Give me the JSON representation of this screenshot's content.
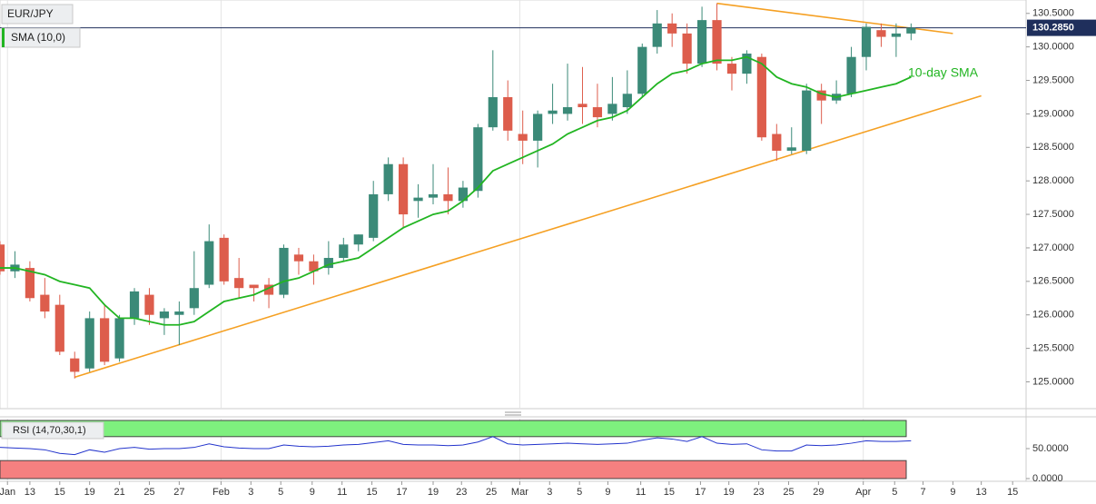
{
  "chart_data": [
    {
      "type": "candlestick",
      "title": "EUR/JPY",
      "x": [
        0,
        1,
        2,
        3,
        4,
        5,
        6,
        7,
        8,
        9,
        10,
        11,
        12,
        13,
        14,
        15,
        16,
        17,
        18,
        19,
        20,
        21,
        22,
        23,
        24,
        25,
        26,
        27,
        28,
        29,
        30,
        31,
        32,
        33,
        34,
        35,
        36,
        37,
        38,
        39,
        40,
        41,
        42,
        43,
        44,
        45,
        46,
        47,
        48,
        49,
        50,
        51,
        52,
        53,
        54,
        55,
        56,
        57,
        58,
        59,
        60,
        61
      ],
      "open": [
        127.05,
        126.65,
        126.7,
        126.3,
        126.15,
        125.35,
        125.2,
        125.95,
        125.35,
        125.95,
        126.3,
        125.95,
        126.0,
        126.1,
        126.45,
        127.15,
        126.55,
        126.45,
        126.45,
        126.3,
        126.9,
        126.8,
        126.7,
        126.85,
        127.05,
        127.15,
        127.8,
        128.25,
        127.7,
        127.75,
        127.8,
        127.7,
        127.85,
        128.8,
        129.25,
        128.7,
        128.6,
        129.0,
        129.0,
        129.15,
        129.1,
        129.0,
        129.1,
        129.3,
        130.0,
        130.35,
        130.2,
        129.75,
        130.4,
        129.75,
        129.6,
        129.85,
        128.7,
        128.45,
        128.45,
        129.35,
        129.2,
        129.3,
        129.85,
        130.25,
        130.15,
        130.2
      ],
      "high": [
        127.1,
        126.95,
        126.8,
        126.55,
        126.3,
        125.45,
        126.05,
        126.15,
        126.0,
        126.4,
        126.4,
        126.1,
        126.2,
        126.95,
        127.35,
        127.2,
        126.85,
        126.45,
        126.55,
        127.05,
        127.0,
        126.9,
        127.1,
        127.15,
        127.2,
        128.0,
        128.35,
        128.35,
        127.95,
        128.25,
        128.2,
        128.0,
        128.85,
        129.95,
        129.5,
        129.05,
        129.05,
        129.45,
        129.75,
        129.7,
        129.45,
        129.55,
        129.65,
        130.05,
        130.55,
        130.5,
        130.35,
        130.6,
        130.65,
        129.85,
        129.95,
        129.9,
        128.85,
        128.8,
        129.45,
        129.45,
        129.5,
        130.0,
        130.35,
        130.35,
        130.35,
        130.35
      ],
      "low": [
        126.6,
        126.55,
        126.2,
        125.95,
        125.4,
        125.05,
        125.15,
        125.25,
        125.3,
        125.85,
        125.85,
        125.7,
        125.55,
        126.0,
        126.4,
        126.45,
        126.25,
        126.2,
        126.1,
        126.25,
        126.6,
        126.45,
        126.6,
        126.8,
        126.95,
        127.1,
        127.7,
        127.3,
        127.45,
        127.65,
        127.5,
        127.6,
        127.75,
        128.75,
        128.6,
        128.25,
        128.2,
        128.85,
        128.9,
        128.85,
        128.8,
        128.9,
        129.0,
        129.25,
        129.9,
        130.0,
        129.6,
        129.7,
        129.65,
        129.35,
        129.45,
        128.6,
        128.3,
        128.4,
        128.4,
        128.85,
        129.15,
        129.25,
        129.65,
        130.0,
        129.85,
        130.1
      ],
      "close": [
        126.65,
        126.75,
        126.25,
        126.05,
        125.45,
        125.15,
        125.95,
        125.3,
        125.95,
        126.35,
        126.0,
        126.05,
        126.05,
        126.4,
        127.1,
        126.5,
        126.4,
        126.4,
        126.3,
        127.0,
        126.8,
        126.65,
        126.85,
        127.05,
        127.2,
        127.8,
        128.25,
        127.5,
        127.75,
        127.8,
        127.7,
        127.9,
        128.8,
        129.25,
        128.75,
        128.6,
        129.0,
        129.05,
        129.1,
        129.1,
        128.95,
        129.15,
        129.3,
        130.0,
        130.35,
        130.2,
        129.75,
        130.4,
        129.75,
        129.6,
        129.9,
        128.65,
        128.45,
        128.5,
        129.35,
        129.2,
        129.3,
        129.85,
        130.3,
        130.15,
        130.2,
        130.285
      ],
      "up_color": "#3b8a78",
      "down_color": "#dd5d4c",
      "series": [
        {
          "name": "SMA (10,0)",
          "color": "#22b522",
          "values": [
            126.7,
            126.7,
            126.65,
            126.6,
            126.5,
            126.45,
            126.4,
            126.15,
            125.95,
            125.95,
            125.9,
            125.85,
            125.85,
            125.9,
            126.05,
            126.2,
            126.25,
            126.3,
            126.4,
            126.5,
            126.55,
            126.65,
            126.75,
            126.8,
            126.85,
            127.0,
            127.15,
            127.3,
            127.4,
            127.5,
            127.55,
            127.7,
            127.9,
            128.15,
            128.25,
            128.35,
            128.45,
            128.55,
            128.7,
            128.8,
            128.9,
            128.95,
            129.05,
            129.25,
            129.45,
            129.6,
            129.65,
            129.75,
            129.8,
            129.8,
            129.85,
            129.75,
            129.55,
            129.45,
            129.4,
            129.3,
            129.25,
            129.3,
            129.35,
            129.4,
            129.45,
            129.55
          ]
        }
      ],
      "annotation": "10-day SMA",
      "trendlines": [
        {
          "color": "#f5a023",
          "x": [
            5,
            65.7
          ],
          "y": [
            125.07,
            129.27
          ]
        },
        {
          "color": "#f5a023",
          "x": [
            48,
            63.8
          ],
          "y": [
            130.65,
            130.2
          ]
        }
      ],
      "current_price": {
        "value": 130.285,
        "label": "130.2850",
        "color": "#1f2f5c"
      },
      "xlim": [
        0,
        68.7
      ],
      "ylim": [
        124.6,
        130.7
      ],
      "yticks": [
        {
          "value": 125,
          "label": "125.0000"
        },
        {
          "value": 125.5,
          "label": "125.5000"
        },
        {
          "value": 126,
          "label": "126.0000"
        },
        {
          "value": 126.5,
          "label": "126.5000"
        },
        {
          "value": 127,
          "label": "127.0000"
        },
        {
          "value": 127.5,
          "label": "127.5000"
        },
        {
          "value": 128,
          "label": "128.0000"
        },
        {
          "value": 128.5,
          "label": "128.5000"
        },
        {
          "value": 129,
          "label": "129.0000"
        },
        {
          "value": 129.5,
          "label": "129.5000"
        },
        {
          "value": 130,
          "label": "130.0000"
        },
        {
          "value": 130.5,
          "label": "130.5000"
        }
      ],
      "xticks": [
        {
          "value": 0.5,
          "label": "Jan"
        },
        {
          "value": 2,
          "label": "13"
        },
        {
          "value": 4,
          "label": "15"
        },
        {
          "value": 6,
          "label": "19"
        },
        {
          "value": 8,
          "label": "21"
        },
        {
          "value": 10,
          "label": "25"
        },
        {
          "value": 12,
          "label": "27"
        },
        {
          "value": 14.8,
          "label": "Feb"
        },
        {
          "value": 16.8,
          "label": "3"
        },
        {
          "value": 18.8,
          "label": "5"
        },
        {
          "value": 20.9,
          "label": "9"
        },
        {
          "value": 22.9,
          "label": "11"
        },
        {
          "value": 24.9,
          "label": "15"
        },
        {
          "value": 26.9,
          "label": "17"
        },
        {
          "value": 29,
          "label": "19"
        },
        {
          "value": 30.9,
          "label": "23"
        },
        {
          "value": 32.9,
          "label": "25"
        },
        {
          "value": 34.8,
          "label": "Mar"
        },
        {
          "value": 36.8,
          "label": "3"
        },
        {
          "value": 38.8,
          "label": "5"
        },
        {
          "value": 40.7,
          "label": "9"
        },
        {
          "value": 42.9,
          "label": "11"
        },
        {
          "value": 44.8,
          "label": "15"
        },
        {
          "value": 46.9,
          "label": "17"
        },
        {
          "value": 48.8,
          "label": "19"
        },
        {
          "value": 50.8,
          "label": "23"
        },
        {
          "value": 52.8,
          "label": "25"
        },
        {
          "value": 54.8,
          "label": "29"
        },
        {
          "value": 57.8,
          "label": "Apr"
        },
        {
          "value": 59.9,
          "label": "5"
        },
        {
          "value": 61.8,
          "label": "7"
        },
        {
          "value": 63.8,
          "label": "9"
        },
        {
          "value": 65.7,
          "label": "13"
        },
        {
          "value": 67.8,
          "label": "15"
        }
      ]
    },
    {
      "type": "line",
      "x": [
        0,
        1,
        2,
        3,
        4,
        5,
        6,
        7,
        8,
        9,
        10,
        11,
        12,
        13,
        14,
        15,
        16,
        17,
        18,
        19,
        20,
        21,
        22,
        23,
        24,
        25,
        26,
        27,
        28,
        29,
        30,
        31,
        32,
        33,
        34,
        35,
        36,
        37,
        38,
        39,
        40,
        41,
        42,
        43,
        44,
        45,
        46,
        47,
        48,
        49,
        50,
        51,
        52,
        53,
        54,
        55,
        56,
        57,
        58,
        59,
        60,
        61
      ],
      "series": [
        {
          "name": "RSI (14,70,30,1)",
          "color": "#2233cc",
          "values": [
            52,
            51,
            50,
            48,
            42,
            40,
            48,
            44,
            50,
            52,
            49,
            50,
            50,
            52,
            58,
            53,
            51,
            50,
            50,
            56,
            54,
            53,
            54,
            56,
            57,
            60,
            63,
            57,
            56,
            56,
            55,
            56,
            61,
            70,
            58,
            56,
            57,
            58,
            59,
            58,
            57,
            58,
            59,
            64,
            68,
            66,
            62,
            70,
            59,
            57,
            58,
            48,
            46,
            46,
            56,
            55,
            56,
            59,
            63,
            62,
            62,
            63
          ]
        }
      ],
      "overbought": 70,
      "oversold": 30,
      "overbought_color": "#7ef07e",
      "oversold_color": "#f58080",
      "ylim": [
        0,
        100
      ],
      "yticks": [
        {
          "value": 50,
          "label": "50.0000"
        },
        {
          "value": 0,
          "label": "0.0000"
        }
      ]
    }
  ]
}
